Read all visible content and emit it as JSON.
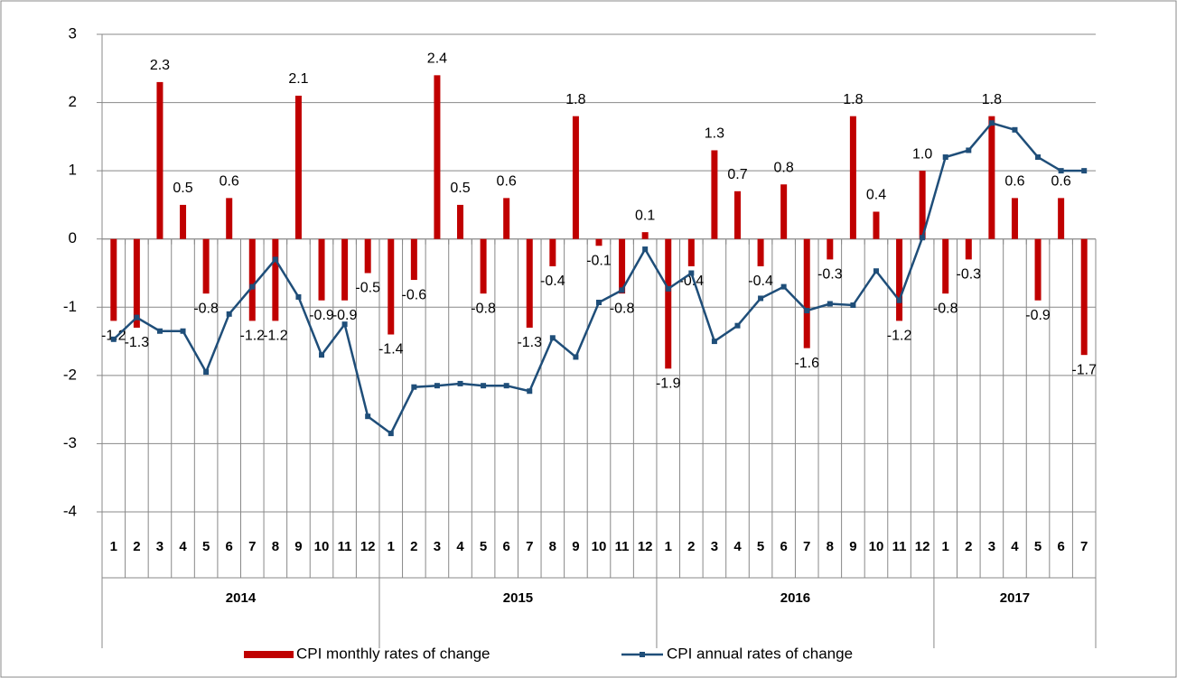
{
  "chart_data": {
    "type": "bar",
    "groups": [
      {
        "label": "2014",
        "categories": [
          "1",
          "2",
          "3",
          "4",
          "5",
          "6",
          "7",
          "8",
          "9",
          "10",
          "11",
          "12"
        ]
      },
      {
        "label": "2015",
        "categories": [
          "1",
          "2",
          "3",
          "4",
          "5",
          "6",
          "7",
          "8",
          "9",
          "10",
          "11",
          "12"
        ]
      },
      {
        "label": "2016",
        "categories": [
          "1",
          "2",
          "3",
          "4",
          "5",
          "6",
          "7",
          "8",
          "9",
          "10",
          "11",
          "12"
        ]
      },
      {
        "label": "2017",
        "categories": [
          "1",
          "2",
          "3",
          "4",
          "5",
          "6",
          "7"
        ]
      }
    ],
    "series": [
      {
        "name": "CPI monthly rates of change",
        "type": "bar",
        "color": "#c00000",
        "values": [
          -1.2,
          -1.3,
          2.3,
          0.5,
          -0.8,
          0.6,
          -1.2,
          -1.2,
          2.1,
          -0.9,
          -0.9,
          -0.5,
          -1.4,
          -0.6,
          2.4,
          0.5,
          -0.8,
          0.6,
          -1.3,
          -0.4,
          1.8,
          -0.1,
          -0.8,
          0.1,
          -1.9,
          -0.4,
          1.3,
          0.7,
          -0.4,
          0.8,
          -1.6,
          -0.3,
          1.8,
          0.4,
          -1.2,
          1.0,
          -0.8,
          -0.3,
          1.8,
          0.6,
          -0.9,
          0.6,
          -1.7
        ],
        "value_labels": [
          "-1.2",
          "-1.3",
          "2.3",
          "0.5",
          "-0.8",
          "0.6",
          "-1.2",
          "-1.2",
          "2.1",
          "-0.9",
          "-0.9",
          "-0.5",
          "-1.4",
          "-0.6",
          "2.4",
          "0.5",
          "-0.8",
          "0.6",
          "-1.3",
          "-0.4",
          "1.8",
          "-0.1",
          "-0.8",
          "0.1",
          "-1.9",
          "-0.4",
          "1.3",
          "0.7",
          "-0.4",
          "0.8",
          "-1.6",
          "-0.3",
          "1.8",
          "0.4",
          "-1.2",
          "1.0",
          "-0.8",
          "-0.3",
          "1.8",
          "0.6",
          "-0.9",
          "0.6",
          "-1.7"
        ]
      },
      {
        "name": "CPI annual rates of change",
        "type": "line",
        "color": "#1f4e79",
        "values": [
          -1.47,
          -1.15,
          -1.35,
          -1.35,
          -1.95,
          -1.1,
          -0.7,
          -0.3,
          -0.85,
          -1.7,
          -1.25,
          -2.6,
          -2.85,
          -2.17,
          -2.15,
          -2.12,
          -2.15,
          -2.15,
          -2.23,
          -1.45,
          -1.73,
          -0.93,
          -0.75,
          -0.15,
          -0.73,
          -0.5,
          -1.5,
          -1.27,
          -0.87,
          -0.7,
          -1.05,
          -0.95,
          -0.97,
          -0.47,
          -0.9,
          0.02,
          1.2,
          1.3,
          1.7,
          1.6,
          1.2,
          1.0,
          1.0
        ]
      }
    ],
    "ylim": [
      -4,
      3
    ],
    "yticks": [
      -4,
      -3,
      -2,
      -1,
      0,
      1,
      2,
      3
    ],
    "grid": true,
    "legend": "bottom"
  }
}
